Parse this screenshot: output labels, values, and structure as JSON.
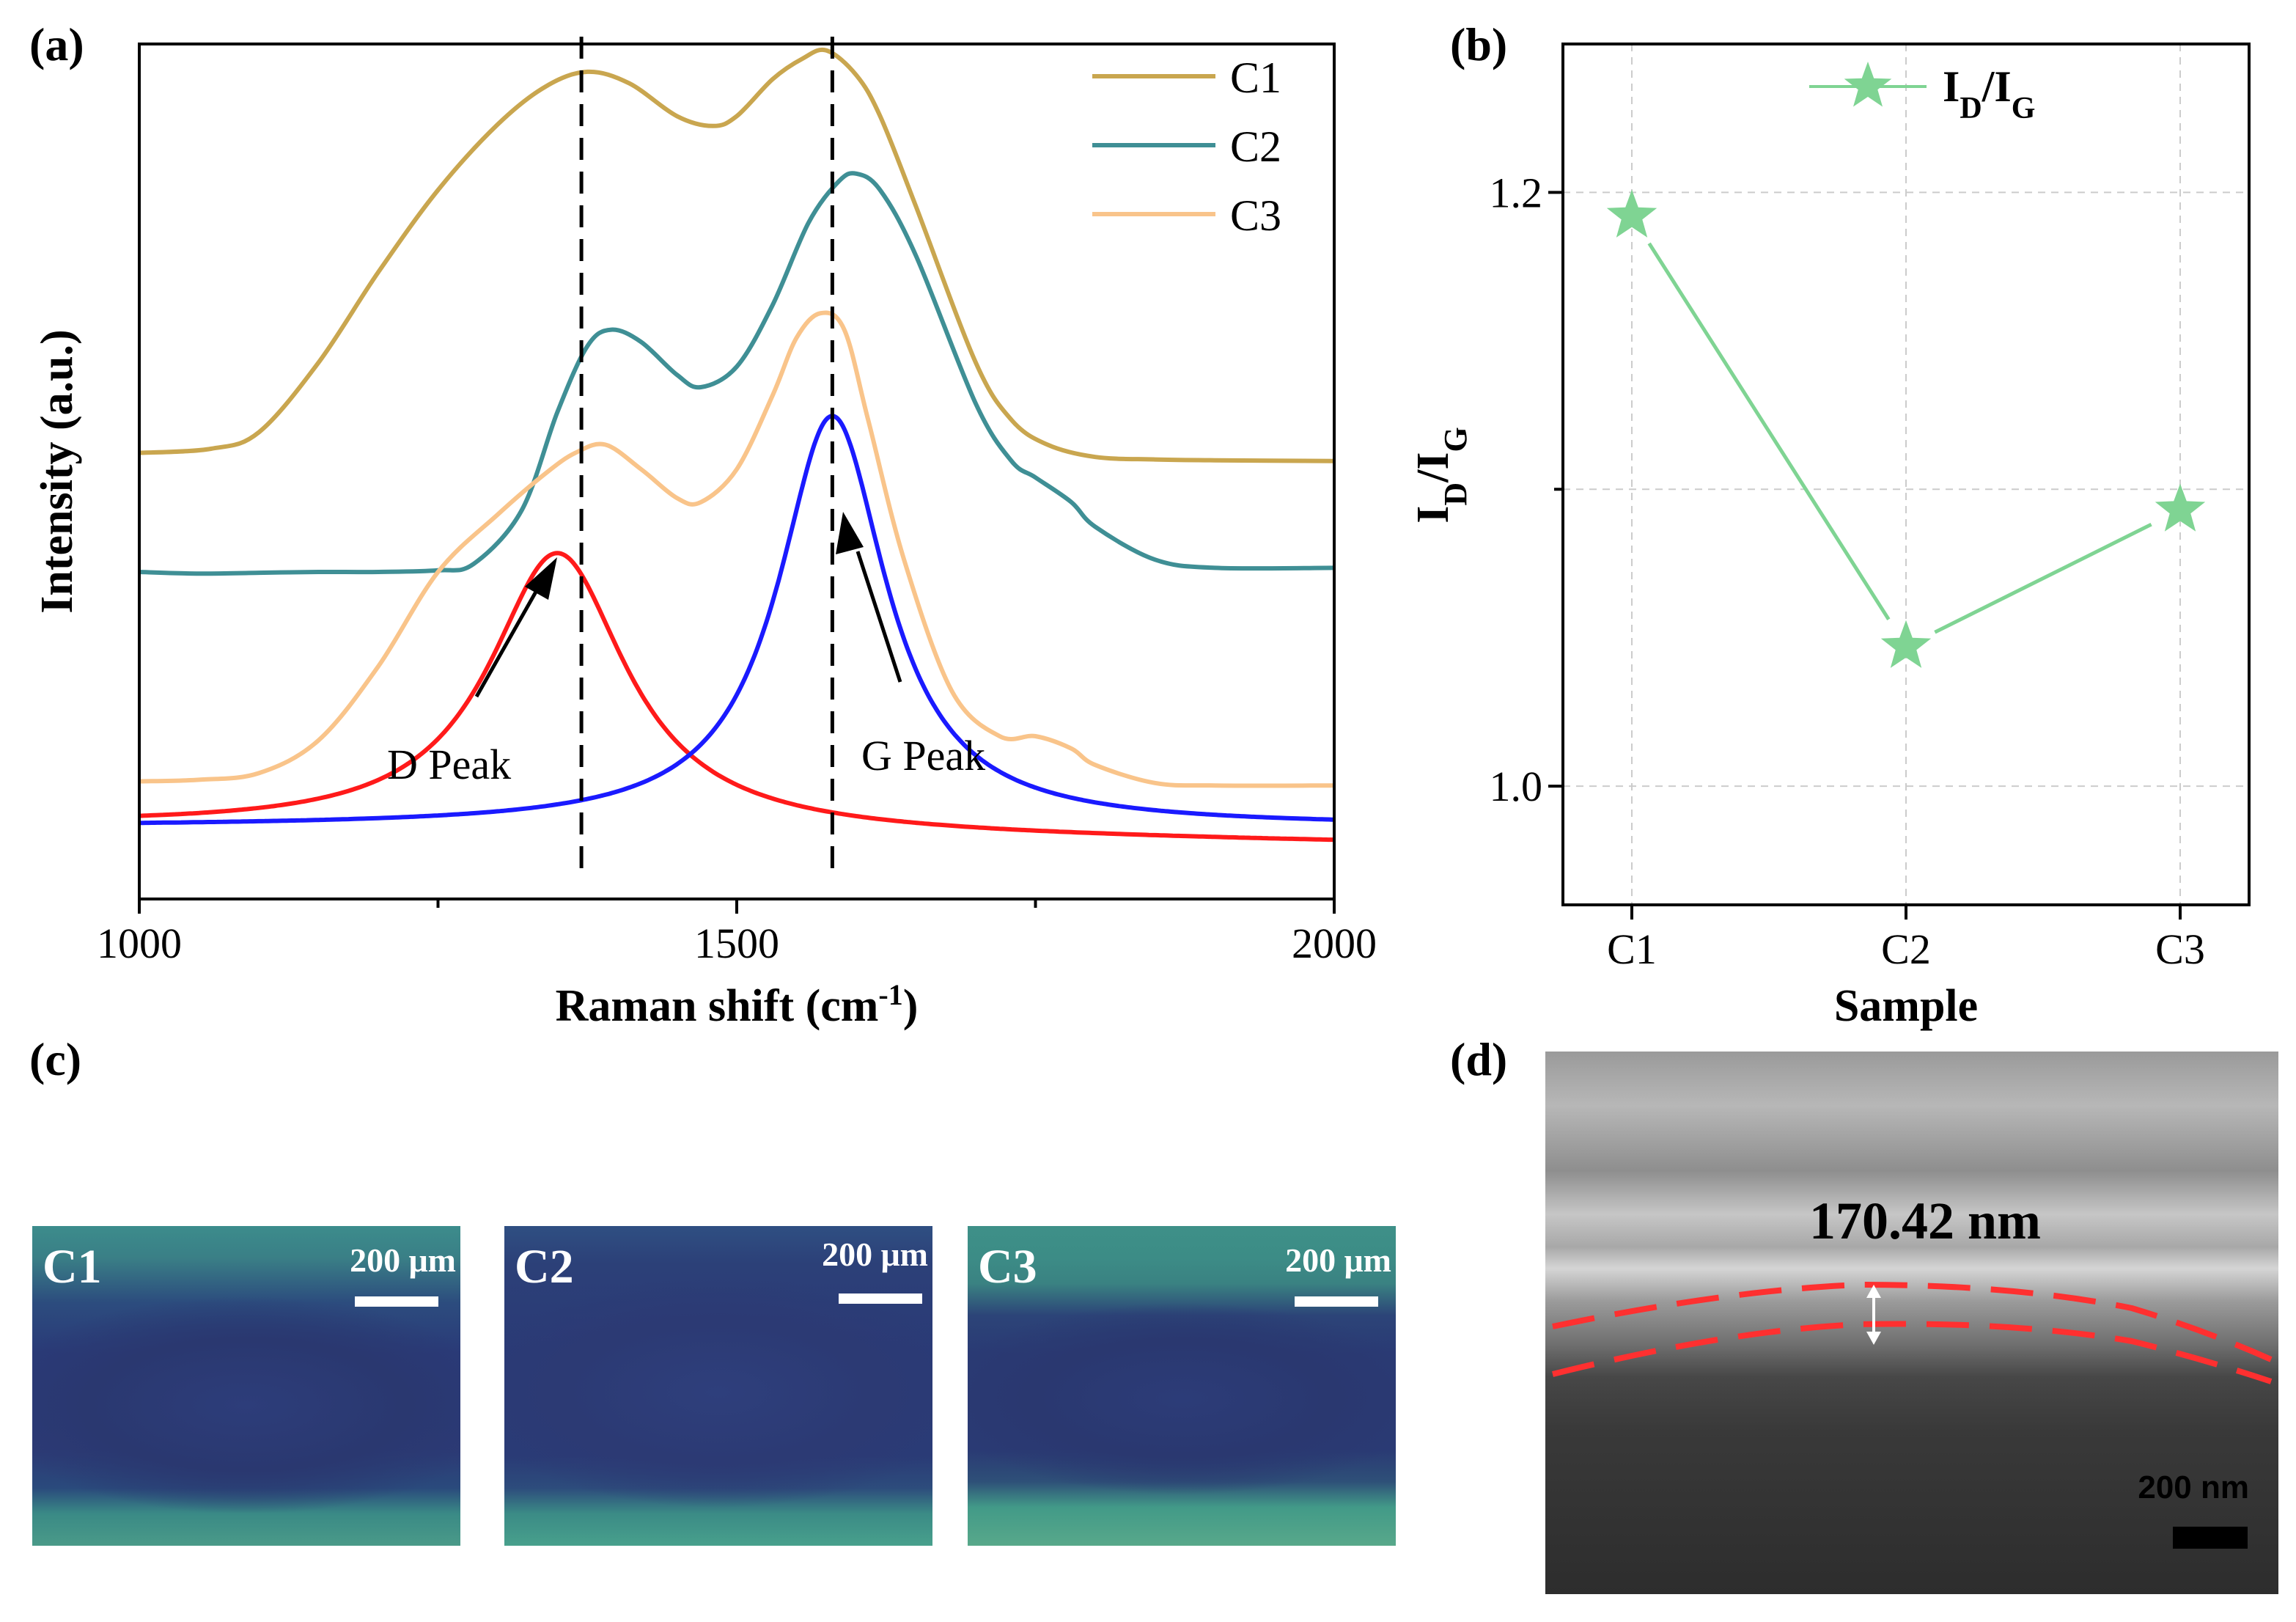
{
  "panel_labels": {
    "a": "(a)",
    "b": "(b)",
    "c": "(c)",
    "d": "(d)"
  },
  "chart_data": [
    {
      "type": "line",
      "panel": "a",
      "xlabel": "Raman shift (cm",
      "xlabel_sup": "-1",
      "xlabel_end": ")",
      "ylabel": "Intensity (a.u.)",
      "xlim": [
        1000,
        2000
      ],
      "ylim": [
        0,
        1
      ],
      "xticks": [
        "1000",
        "1500",
        "2000"
      ],
      "xtick_values": [
        1000,
        1500,
        2000
      ],
      "minor_xticks": [
        1250,
        1750
      ],
      "series": [
        {
          "name": "C1",
          "color": "#c9a64f",
          "x": [
            1000,
            1060,
            1100,
            1150,
            1200,
            1250,
            1300,
            1340,
            1375,
            1410,
            1450,
            1480,
            1500,
            1530,
            1555,
            1575,
            1600,
            1620,
            1650,
            1700,
            1730,
            1760,
            1800,
            1850,
            1900,
            2000
          ],
          "y": [
            0.52,
            0.525,
            0.545,
            0.63,
            0.74,
            0.84,
            0.92,
            0.966,
            0.984,
            0.97,
            0.93,
            0.918,
            0.93,
            0.975,
            1.0,
            1.01,
            0.98,
            0.93,
            0.82,
            0.63,
            0.56,
            0.53,
            0.515,
            0.512,
            0.511,
            0.51
          ]
        },
        {
          "name": "C2",
          "color": "#3f8f95",
          "x": [
            1000,
            1050,
            1100,
            1150,
            1200,
            1250,
            1280,
            1320,
            1350,
            1375,
            1395,
            1420,
            1450,
            1470,
            1500,
            1530,
            1560,
            1585,
            1600,
            1620,
            1650,
            1700,
            1730,
            1750,
            1780,
            1800,
            1850,
            1900,
            2000
          ],
          "y": [
            0.375,
            0.373,
            0.374,
            0.375,
            0.375,
            0.377,
            0.385,
            0.45,
            0.57,
            0.65,
            0.67,
            0.655,
            0.615,
            0.6,
            0.625,
            0.7,
            0.8,
            0.85,
            0.86,
            0.84,
            0.76,
            0.58,
            0.51,
            0.49,
            0.46,
            0.43,
            0.39,
            0.38,
            0.38
          ]
        },
        {
          "name": "C3",
          "color": "#f9c48a",
          "x": [
            1000,
            1050,
            1100,
            1150,
            1200,
            1250,
            1300,
            1340,
            1365,
            1390,
            1420,
            1450,
            1470,
            1500,
            1530,
            1550,
            1570,
            1590,
            1610,
            1640,
            1680,
            1720,
            1750,
            1780,
            1800,
            1850,
            1900,
            2000
          ],
          "y": [
            0.12,
            0.122,
            0.13,
            0.17,
            0.26,
            0.375,
            0.445,
            0.495,
            0.52,
            0.53,
            0.5,
            0.465,
            0.46,
            0.5,
            0.59,
            0.66,
            0.69,
            0.67,
            0.56,
            0.39,
            0.23,
            0.175,
            0.175,
            0.16,
            0.14,
            0.118,
            0.115,
            0.115
          ]
        },
        {
          "name": "D Peak fit",
          "color": "#ff1a1a",
          "legend": false,
          "peak_type": "lorentzian",
          "x0": 1350,
          "width": 70,
          "height": 0.34,
          "baseline": 0.065,
          "slope": -2e-05
        },
        {
          "name": "G Peak fit",
          "color": "#1a1aff",
          "legend": false,
          "peak_type": "lorentzian",
          "x0": 1580,
          "width": 55,
          "height": 0.5,
          "baseline": 0.065,
          "slope": 0.0
        }
      ],
      "reference_lines": [
        1370,
        1580
      ],
      "annotations": [
        "D Peak",
        "G Peak"
      ],
      "legend": [
        "C1",
        "C2",
        "C3"
      ],
      "legend_position": "top-right"
    },
    {
      "type": "line",
      "panel": "b",
      "xlabel": "Sample",
      "ylabel": "I",
      "ylabel_sub": "D",
      "ylabel_sep": "/I",
      "ylabel_sub2": "G",
      "categories": [
        "C1",
        "C2",
        "C3"
      ],
      "ylim": [
        0.96,
        1.25
      ],
      "yticks": [
        "1.0",
        "1.2"
      ],
      "ytick_values": [
        1.0,
        1.2
      ],
      "minor_yticks": [
        1.1
      ],
      "grid": true,
      "series": [
        {
          "name": "ID/IG",
          "color": "#7fd493",
          "marker": "star",
          "values": [
            1.192,
            1.047,
            1.093
          ]
        }
      ],
      "legend_label": "I",
      "legend_sub": "D",
      "legend_sep": "/I",
      "legend_sub2": "G",
      "legend_position": "top-center"
    }
  ],
  "micrographs": [
    {
      "label": "C1",
      "scale": "200 μm"
    },
    {
      "label": "C2",
      "scale": "200 μm"
    },
    {
      "label": "C3",
      "scale": "200 μm"
    }
  ],
  "sem": {
    "thickness": "170.42 nm",
    "scale": "200 nm"
  },
  "colors": {
    "axis": "#000000",
    "grid": "#cccccc",
    "film_outline": "#ff3030"
  }
}
